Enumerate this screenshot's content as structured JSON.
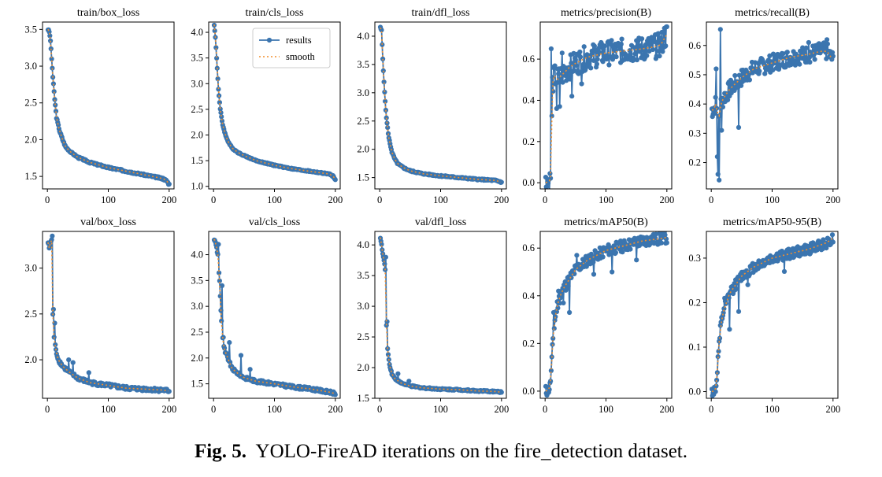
{
  "caption": {
    "label": "Fig. 5.",
    "text": "YOLO-FireAD iterations on the fire_detection dataset."
  },
  "legend": {
    "results": "results",
    "smooth": "smooth"
  },
  "colors": {
    "series": "#3b75af",
    "smooth": "#f28e2b",
    "axis": "#000000"
  },
  "chart_data": [
    {
      "type": "line",
      "title": "train/box_loss",
      "xlim": [
        -8,
        208
      ],
      "ylim": [
        1.33,
        3.6
      ],
      "xticks": [
        0,
        100,
        200
      ],
      "yticks": [
        1.5,
        2.0,
        2.5,
        3.0,
        3.5
      ],
      "yfmt": 1,
      "legend": false,
      "anchors": [
        [
          1,
          3.5
        ],
        [
          3,
          3.47
        ],
        [
          5,
          3.35
        ],
        [
          7,
          3.1
        ],
        [
          9,
          2.85
        ],
        [
          12,
          2.55
        ],
        [
          15,
          2.3
        ],
        [
          20,
          2.12
        ],
        [
          25,
          2.0
        ],
        [
          30,
          1.9
        ],
        [
          40,
          1.82
        ],
        [
          50,
          1.76
        ],
        [
          70,
          1.69
        ],
        [
          100,
          1.62
        ],
        [
          130,
          1.57
        ],
        [
          160,
          1.52
        ],
        [
          190,
          1.47
        ],
        [
          196,
          1.44
        ],
        [
          200,
          1.39
        ]
      ],
      "noise": 0.012
    },
    {
      "type": "line",
      "title": "train/cls_loss",
      "xlim": [
        -8,
        208
      ],
      "ylim": [
        0.95,
        4.2
      ],
      "xticks": [
        0,
        100,
        200
      ],
      "yticks": [
        1.0,
        1.5,
        2.0,
        2.5,
        3.0,
        3.5,
        4.0
      ],
      "yfmt": 1,
      "legend": true,
      "anchors": [
        [
          1,
          4.15
        ],
        [
          3,
          3.9
        ],
        [
          5,
          3.5
        ],
        [
          8,
          2.9
        ],
        [
          11,
          2.5
        ],
        [
          15,
          2.2
        ],
        [
          20,
          1.98
        ],
        [
          25,
          1.85
        ],
        [
          30,
          1.75
        ],
        [
          40,
          1.66
        ],
        [
          50,
          1.6
        ],
        [
          70,
          1.5
        ],
        [
          100,
          1.41
        ],
        [
          130,
          1.34
        ],
        [
          160,
          1.29
        ],
        [
          190,
          1.24
        ],
        [
          196,
          1.2
        ],
        [
          200,
          1.14
        ]
      ],
      "noise": 0.012
    },
    {
      "type": "line",
      "title": "train/dfl_loss",
      "xlim": [
        -8,
        208
      ],
      "ylim": [
        1.3,
        4.25
      ],
      "xticks": [
        0,
        100,
        200
      ],
      "yticks": [
        1.5,
        2.0,
        2.5,
        3.0,
        3.5,
        4.0
      ],
      "yfmt": 1,
      "legend": false,
      "anchors": [
        [
          1,
          4.15
        ],
        [
          3,
          4.1
        ],
        [
          5,
          3.6
        ],
        [
          8,
          3.0
        ],
        [
          11,
          2.55
        ],
        [
          15,
          2.2
        ],
        [
          20,
          1.95
        ],
        [
          25,
          1.82
        ],
        [
          30,
          1.74
        ],
        [
          40,
          1.67
        ],
        [
          50,
          1.62
        ],
        [
          70,
          1.57
        ],
        [
          100,
          1.53
        ],
        [
          130,
          1.5
        ],
        [
          160,
          1.47
        ],
        [
          190,
          1.45
        ],
        [
          200,
          1.42
        ]
      ],
      "noise": 0.012
    },
    {
      "type": "line",
      "title": "metrics/precision(B)",
      "xlim": [
        -8,
        208
      ],
      "ylim": [
        -0.03,
        0.78
      ],
      "xticks": [
        0,
        100,
        200
      ],
      "yticks": [
        0.0,
        0.2,
        0.4,
        0.6
      ],
      "yfmt": 1,
      "legend": false,
      "anchors": [
        [
          1,
          0.0
        ],
        [
          5,
          0.005
        ],
        [
          8,
          0.01
        ],
        [
          10,
          0.05
        ],
        [
          11,
          0.3
        ],
        [
          12,
          0.48
        ],
        [
          15,
          0.52
        ],
        [
          20,
          0.5
        ],
        [
          30,
          0.53
        ],
        [
          40,
          0.56
        ],
        [
          50,
          0.58
        ],
        [
          70,
          0.61
        ],
        [
          100,
          0.63
        ],
        [
          130,
          0.64
        ],
        [
          160,
          0.65
        ],
        [
          180,
          0.66
        ],
        [
          190,
          0.67
        ],
        [
          200,
          0.72
        ]
      ],
      "noise": 0.06,
      "spikes": [
        [
          10,
          0.65
        ],
        [
          19,
          0.36
        ],
        [
          24,
          0.37
        ],
        [
          28,
          0.63
        ],
        [
          44,
          0.42
        ],
        [
          60,
          0.48
        ],
        [
          90,
          0.67
        ],
        [
          150,
          0.69
        ],
        [
          196,
          0.75
        ]
      ]
    },
    {
      "type": "line",
      "title": "metrics/recall(B)",
      "xlim": [
        -8,
        208
      ],
      "ylim": [
        0.11,
        0.68
      ],
      "xticks": [
        0,
        100,
        200
      ],
      "yticks": [
        0.2,
        0.3,
        0.4,
        0.5,
        0.6
      ],
      "yfmt": 1,
      "legend": false,
      "anchors": [
        [
          1,
          0.38
        ],
        [
          4,
          0.38
        ],
        [
          7,
          0.4
        ],
        [
          10,
          0.37
        ],
        [
          13,
          0.36
        ],
        [
          16,
          0.4
        ],
        [
          20,
          0.42
        ],
        [
          30,
          0.45
        ],
        [
          40,
          0.47
        ],
        [
          50,
          0.49
        ],
        [
          70,
          0.52
        ],
        [
          100,
          0.54
        ],
        [
          130,
          0.56
        ],
        [
          160,
          0.57
        ],
        [
          180,
          0.58
        ],
        [
          190,
          0.58
        ],
        [
          200,
          0.55
        ]
      ],
      "noise": 0.03,
      "spikes": [
        [
          8,
          0.52
        ],
        [
          10,
          0.22
        ],
        [
          11,
          0.16
        ],
        [
          13,
          0.14
        ],
        [
          15,
          0.655
        ],
        [
          17,
          0.31
        ],
        [
          45,
          0.32
        ],
        [
          160,
          0.61
        ],
        [
          190,
          0.62
        ]
      ]
    },
    {
      "type": "line",
      "title": "val/box_loss",
      "xlim": [
        -8,
        208
      ],
      "ylim": [
        1.58,
        3.4
      ],
      "xticks": [
        0,
        100,
        200
      ],
      "yticks": [
        2.0,
        2.5,
        3.0
      ],
      "yfmt": 1,
      "legend": false,
      "anchors": [
        [
          1,
          3.28
        ],
        [
          3,
          3.22
        ],
        [
          5,
          3.28
        ],
        [
          7,
          3.3
        ],
        [
          9,
          2.5
        ],
        [
          11,
          2.25
        ],
        [
          14,
          2.1
        ],
        [
          18,
          2.0
        ],
        [
          25,
          1.93
        ],
        [
          35,
          1.87
        ],
        [
          50,
          1.8
        ],
        [
          70,
          1.75
        ],
        [
          100,
          1.72
        ],
        [
          130,
          1.69
        ],
        [
          160,
          1.68
        ],
        [
          190,
          1.67
        ],
        [
          200,
          1.66
        ]
      ],
      "noise": 0.02,
      "spikes": [
        [
          8,
          3.35
        ],
        [
          10,
          2.55
        ],
        [
          12,
          2.4
        ],
        [
          35,
          2.0
        ],
        [
          42,
          1.97
        ],
        [
          68,
          1.86
        ]
      ]
    },
    {
      "type": "line",
      "title": "val/cls_loss",
      "xlim": [
        -8,
        208
      ],
      "ylim": [
        1.22,
        4.45
      ],
      "xticks": [
        0,
        100,
        200
      ],
      "yticks": [
        1.5,
        2.0,
        2.5,
        3.0,
        3.5,
        4.0
      ],
      "yfmt": 1,
      "legend": false,
      "anchors": [
        [
          1,
          4.3
        ],
        [
          4,
          4.2
        ],
        [
          7,
          4.0
        ],
        [
          10,
          3.5
        ],
        [
          12,
          2.9
        ],
        [
          14,
          2.5
        ],
        [
          17,
          2.2
        ],
        [
          20,
          2.1
        ],
        [
          25,
          1.95
        ],
        [
          30,
          1.8
        ],
        [
          40,
          1.7
        ],
        [
          50,
          1.62
        ],
        [
          70,
          1.55
        ],
        [
          100,
          1.5
        ],
        [
          130,
          1.44
        ],
        [
          160,
          1.4
        ],
        [
          190,
          1.34
        ],
        [
          200,
          1.31
        ]
      ],
      "noise": 0.03,
      "spikes": [
        [
          8,
          4.2
        ],
        [
          14,
          3.4
        ],
        [
          16,
          2.4
        ],
        [
          19,
          2.1
        ],
        [
          26,
          2.3
        ],
        [
          45,
          2.05
        ],
        [
          60,
          1.78
        ]
      ]
    },
    {
      "type": "line",
      "title": "val/dfl_loss",
      "xlim": [
        -8,
        208
      ],
      "ylim": [
        1.5,
        4.22
      ],
      "xticks": [
        0,
        100,
        200
      ],
      "yticks": [
        1.5,
        2.0,
        2.5,
        3.0,
        3.5,
        4.0
      ],
      "yfmt": 1,
      "legend": false,
      "anchors": [
        [
          1,
          4.12
        ],
        [
          3,
          4.0
        ],
        [
          5,
          3.85
        ],
        [
          7,
          3.75
        ],
        [
          9,
          3.6
        ],
        [
          11,
          2.7
        ],
        [
          13,
          2.3
        ],
        [
          16,
          2.05
        ],
        [
          20,
          1.9
        ],
        [
          25,
          1.82
        ],
        [
          35,
          1.75
        ],
        [
          50,
          1.7
        ],
        [
          70,
          1.67
        ],
        [
          100,
          1.65
        ],
        [
          130,
          1.64
        ],
        [
          160,
          1.62
        ],
        [
          190,
          1.61
        ],
        [
          200,
          1.6
        ]
      ],
      "noise": 0.012,
      "spikes": [
        [
          10,
          3.8
        ],
        [
          12,
          2.75
        ],
        [
          30,
          1.9
        ],
        [
          48,
          1.78
        ]
      ]
    },
    {
      "type": "line",
      "title": "metrics/mAP50(B)",
      "xlim": [
        -8,
        208
      ],
      "ylim": [
        -0.03,
        0.67
      ],
      "xticks": [
        0,
        100,
        200
      ],
      "yticks": [
        0.0,
        0.2,
        0.4,
        0.6
      ],
      "yfmt": 1,
      "legend": false,
      "anchors": [
        [
          1,
          0.0
        ],
        [
          5,
          0.005
        ],
        [
          8,
          0.02
        ],
        [
          10,
          0.08
        ],
        [
          13,
          0.22
        ],
        [
          16,
          0.3
        ],
        [
          20,
          0.36
        ],
        [
          25,
          0.4
        ],
        [
          30,
          0.43
        ],
        [
          40,
          0.47
        ],
        [
          50,
          0.51
        ],
        [
          70,
          0.55
        ],
        [
          100,
          0.59
        ],
        [
          130,
          0.61
        ],
        [
          160,
          0.63
        ],
        [
          190,
          0.64
        ],
        [
          200,
          0.645
        ]
      ],
      "noise": 0.025,
      "spikes": [
        [
          14,
          0.33
        ],
        [
          22,
          0.42
        ],
        [
          30,
          0.37
        ],
        [
          40,
          0.33
        ],
        [
          52,
          0.57
        ],
        [
          80,
          0.49
        ],
        [
          110,
          0.5
        ],
        [
          150,
          0.55
        ]
      ]
    },
    {
      "type": "line",
      "title": "metrics/mAP50-95(B)",
      "xlim": [
        -8,
        208
      ],
      "ylim": [
        -0.015,
        0.36
      ],
      "xticks": [
        0,
        100,
        200
      ],
      "yticks": [
        0.0,
        0.1,
        0.2,
        0.3
      ],
      "yfmt": 1,
      "legend": false,
      "anchors": [
        [
          1,
          0.0
        ],
        [
          5,
          0.002
        ],
        [
          8,
          0.01
        ],
        [
          10,
          0.05
        ],
        [
          13,
          0.11
        ],
        [
          16,
          0.15
        ],
        [
          20,
          0.18
        ],
        [
          25,
          0.2
        ],
        [
          30,
          0.22
        ],
        [
          40,
          0.24
        ],
        [
          50,
          0.26
        ],
        [
          70,
          0.28
        ],
        [
          100,
          0.3
        ],
        [
          130,
          0.31
        ],
        [
          160,
          0.32
        ],
        [
          190,
          0.335
        ],
        [
          200,
          0.345
        ]
      ],
      "noise": 0.012,
      "spikes": [
        [
          14,
          0.12
        ],
        [
          22,
          0.21
        ],
        [
          30,
          0.14
        ],
        [
          45,
          0.18
        ],
        [
          60,
          0.24
        ],
        [
          120,
          0.27
        ]
      ]
    }
  ]
}
